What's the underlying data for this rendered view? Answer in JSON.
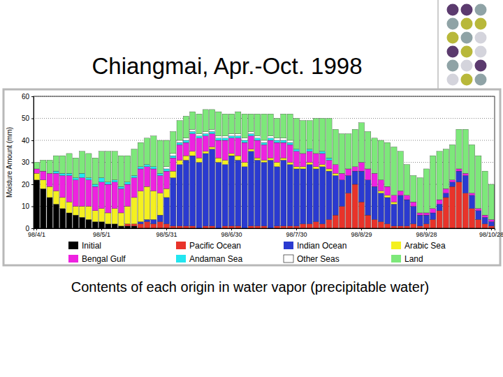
{
  "chart_data": {
    "type": "bar",
    "stacked": true,
    "grid": true,
    "title": "Chiangmai, Apr.-Oct. 1998",
    "subtitle": "Contents of each origin in water vapor (precipitable water)",
    "y_label": "Moisture Amount (mm)",
    "ylim": [
      0,
      60
    ],
    "yticks": [
      0,
      10,
      20,
      30,
      40,
      50,
      60
    ],
    "categories": [
      "98/4/1",
      null,
      null,
      null,
      null,
      null,
      null,
      null,
      null,
      null,
      "98/5/1",
      null,
      null,
      null,
      null,
      null,
      null,
      null,
      null,
      null,
      "98/5/31",
      null,
      null,
      null,
      null,
      null,
      null,
      null,
      null,
      null,
      "98/6/30",
      null,
      null,
      null,
      null,
      null,
      null,
      null,
      null,
      null,
      "98/7/30",
      null,
      null,
      null,
      null,
      null,
      null,
      null,
      null,
      null,
      "98/8/29",
      null,
      null,
      null,
      null,
      null,
      null,
      null,
      null,
      null,
      "98/9/28",
      null,
      null,
      null,
      null,
      null,
      null,
      null,
      null,
      null,
      "98/10/28"
    ],
    "series": [
      {
        "name": "Initial",
        "color": "#000000",
        "values": [
          22,
          18,
          14,
          11,
          9,
          7,
          6,
          5,
          4,
          3,
          3,
          2,
          2,
          1,
          1,
          1,
          0,
          0,
          0,
          0,
          0,
          0,
          0,
          0,
          0,
          0,
          0,
          0,
          0,
          0,
          0,
          0,
          0,
          0,
          0,
          0,
          0,
          0,
          0,
          0,
          0,
          0,
          0,
          0,
          0,
          0,
          0,
          0,
          0,
          0,
          0,
          0,
          0,
          0,
          0,
          0,
          0,
          0,
          0,
          0,
          0,
          0,
          0,
          0,
          0,
          0,
          0,
          0,
          0,
          0,
          0
        ]
      },
      {
        "name": "Pacific Ocean",
        "color": "#e8332a",
        "values": [
          0,
          0,
          0,
          0,
          0,
          0,
          0,
          0,
          0,
          0,
          0,
          0,
          0,
          0,
          1,
          1,
          2,
          3,
          2,
          3,
          2,
          1,
          1,
          1,
          1,
          0,
          1,
          1,
          0,
          1,
          1,
          1,
          0,
          1,
          1,
          1,
          0,
          1,
          1,
          1,
          1,
          2,
          2,
          3,
          2,
          4,
          6,
          10,
          16,
          20,
          12,
          6,
          4,
          3,
          2,
          1,
          1,
          1,
          2,
          1,
          2,
          4,
          8,
          14,
          19,
          21,
          16,
          9,
          4,
          2,
          1
        ]
      },
      {
        "name": "Indian Ocean",
        "color": "#2a3ad0",
        "values": [
          0,
          0,
          0,
          0,
          0,
          0,
          0,
          0,
          0,
          0,
          0,
          0,
          0,
          0,
          0,
          0,
          1,
          1,
          2,
          3,
          12,
          22,
          28,
          30,
          32,
          30,
          33,
          35,
          30,
          28,
          32,
          30,
          28,
          34,
          30,
          29,
          31,
          27,
          30,
          28,
          26,
          25,
          27,
          24,
          26,
          22,
          18,
          12,
          8,
          6,
          14,
          16,
          15,
          13,
          12,
          10,
          14,
          12,
          8,
          5,
          4,
          3,
          3,
          2,
          2,
          5,
          8,
          6,
          4,
          3,
          2
        ]
      },
      {
        "name": "Arabic Sea",
        "color": "#f4f020",
        "values": [
          3,
          4,
          5,
          6,
          5,
          5,
          4,
          5,
          6,
          5,
          6,
          5,
          7,
          6,
          8,
          12,
          14,
          15,
          13,
          10,
          4,
          3,
          2,
          2,
          2,
          2,
          1,
          1,
          2,
          2,
          1,
          2,
          2,
          1,
          1,
          1,
          1,
          2,
          1,
          1,
          1,
          1,
          1,
          1,
          1,
          1,
          1,
          0,
          0,
          0,
          0,
          0,
          0,
          1,
          1,
          1,
          0,
          0,
          0,
          0,
          0,
          0,
          0,
          0,
          0,
          0,
          0,
          0,
          0,
          0,
          0
        ]
      },
      {
        "name": "Bengal Gulf",
        "color": "#ee22e0",
        "values": [
          2,
          4,
          6,
          8,
          10,
          12,
          12,
          13,
          12,
          11,
          12,
          13,
          12,
          11,
          10,
          9,
          10,
          9,
          10,
          8,
          8,
          6,
          7,
          6,
          8,
          9,
          7,
          6,
          8,
          9,
          7,
          8,
          9,
          6,
          8,
          7,
          8,
          9,
          7,
          8,
          7,
          6,
          5,
          6,
          5,
          4,
          4,
          3,
          3,
          2,
          4,
          5,
          6,
          5,
          4,
          3,
          2,
          2,
          2,
          1,
          1,
          2,
          2,
          2,
          1,
          1,
          1,
          1,
          1,
          1,
          1
        ]
      },
      {
        "name": "Andaman Sea",
        "color": "#22e6f0",
        "values": [
          0,
          0,
          0,
          1,
          1,
          1,
          1,
          2,
          1,
          1,
          2,
          1,
          1,
          1,
          1,
          1,
          1,
          1,
          1,
          1,
          1,
          1,
          1,
          1,
          1,
          1,
          1,
          1,
          1,
          1,
          1,
          1,
          1,
          1,
          1,
          1,
          1,
          1,
          1,
          1,
          1,
          0,
          1,
          0,
          1,
          1,
          0,
          0,
          0,
          0,
          0,
          0,
          0,
          0,
          0,
          0,
          0,
          0,
          0,
          0,
          0,
          0,
          0,
          0,
          0,
          0,
          0,
          0,
          0,
          0,
          0
        ]
      },
      {
        "name": "Other Seas",
        "color": "#ffffff",
        "values": [
          0,
          0,
          0,
          0,
          0,
          0,
          0,
          0,
          0,
          0,
          0,
          0,
          0,
          0,
          0,
          0,
          0,
          0,
          0,
          0,
          1,
          1,
          1,
          1,
          1,
          1,
          1,
          1,
          1,
          1,
          1,
          1,
          1,
          1,
          1,
          1,
          1,
          1,
          1,
          1,
          0,
          0,
          0,
          0,
          0,
          0,
          0,
          0,
          0,
          0,
          0,
          0,
          0,
          0,
          0,
          0,
          0,
          0,
          0,
          0,
          0,
          0,
          0,
          0,
          0,
          0,
          0,
          0,
          0,
          0,
          0
        ]
      },
      {
        "name": "Land",
        "color": "#7de87a",
        "values": [
          3,
          5,
          6,
          7,
          8,
          9,
          9,
          10,
          11,
          12,
          12,
          14,
          13,
          14,
          12,
          12,
          11,
          12,
          14,
          15,
          12,
          10,
          9,
          10,
          8,
          9,
          10,
          9,
          11,
          10,
          9,
          10,
          11,
          8,
          10,
          12,
          10,
          9,
          11,
          12,
          14,
          15,
          13,
          16,
          15,
          18,
          16,
          18,
          16,
          17,
          18,
          17,
          16,
          18,
          20,
          22,
          18,
          14,
          12,
          16,
          20,
          24,
          22,
          18,
          16,
          18,
          20,
          22,
          24,
          20,
          16
        ]
      }
    ]
  }
}
